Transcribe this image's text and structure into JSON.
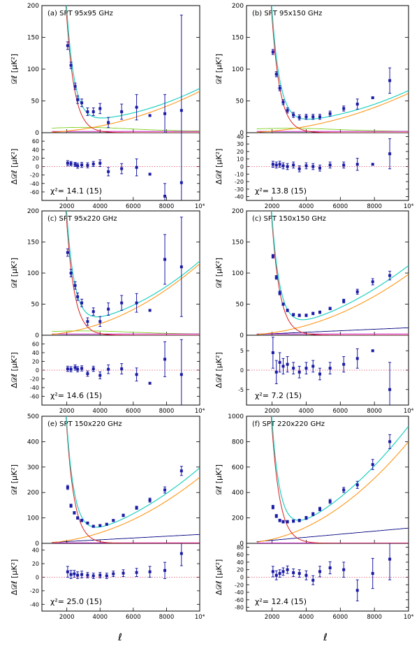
{
  "figure": {
    "x_axis_label": "ℓ",
    "top_ylabel": "𝒟ℓ [μK²]",
    "bottom_ylabel": "Δ𝒟ℓ [μK²]",
    "x_tick_labels": [
      "2000",
      "4000",
      "6000",
      "8000",
      "10⁴"
    ],
    "colors": {
      "data": "#1a1aa6",
      "total_model": "#1fd0c0",
      "cmb": "#d81e1e",
      "poisson": "#ff8c00",
      "cib_clustered": "#7ed321",
      "sz": "#000080",
      "other": "#c000c0",
      "zero_line": "#e0506a"
    }
  },
  "chart_data": [
    {
      "type": "scatter",
      "title": "(a) SPT 95x95 GHz",
      "xlim": [
        500,
        10000
      ],
      "ylim": [
        0,
        200
      ],
      "yticks": [
        0,
        50,
        100,
        150,
        200
      ],
      "resid_ylim": [
        -80,
        80
      ],
      "resid_yticks": [
        -60,
        -40,
        -20,
        0,
        20,
        40,
        60
      ],
      "chi2_label": "χ²= 14.1   (15)",
      "points": [
        {
          "x": 2050,
          "y": 137,
          "e": 6
        },
        {
          "x": 2250,
          "y": 106,
          "e": 5
        },
        {
          "x": 2500,
          "y": 73,
          "e": 5
        },
        {
          "x": 2650,
          "y": 52,
          "e": 6
        },
        {
          "x": 2900,
          "y": 47,
          "e": 6
        },
        {
          "x": 3250,
          "y": 33,
          "e": 6
        },
        {
          "x": 3600,
          "y": 33,
          "e": 6
        },
        {
          "x": 4000,
          "y": 38,
          "e": 8
        },
        {
          "x": 4500,
          "y": 16,
          "e": 8
        },
        {
          "x": 5300,
          "y": 33,
          "e": 12
        },
        {
          "x": 6200,
          "y": 40,
          "e": 20
        },
        {
          "x": 7000,
          "y": 27,
          "e": 0
        },
        {
          "x": 7900,
          "y": 30,
          "e": 30
        },
        {
          "x": 8900,
          "y": 35,
          "e": 150
        }
      ],
      "residuals": [
        {
          "x": 2050,
          "y": 8,
          "e": 6
        },
        {
          "x": 2250,
          "y": 7,
          "e": 5
        },
        {
          "x": 2500,
          "y": 5,
          "e": 5
        },
        {
          "x": 2650,
          "y": 2,
          "e": 6
        },
        {
          "x": 2900,
          "y": 4,
          "e": 6
        },
        {
          "x": 3250,
          "y": 3,
          "e": 6
        },
        {
          "x": 3600,
          "y": 6,
          "e": 6
        },
        {
          "x": 4000,
          "y": 8,
          "e": 8
        },
        {
          "x": 4500,
          "y": -12,
          "e": 10
        },
        {
          "x": 5300,
          "y": -5,
          "e": 12
        },
        {
          "x": 6200,
          "y": -2,
          "e": 20
        },
        {
          "x": 7000,
          "y": -18,
          "e": 0
        },
        {
          "x": 7900,
          "y": -70,
          "e": 30
        },
        {
          "x": 8900,
          "y": -38,
          "e": 150
        }
      ],
      "models": {
        "cmb_scale": 1,
        "poisson_a": 65,
        "cib_amp": 6,
        "sz_amp": 0,
        "other_amp": 2
      }
    },
    {
      "type": "scatter",
      "title": "(b) SPT 95x150 GHz",
      "xlim": [
        500,
        10000
      ],
      "ylim": [
        0,
        200
      ],
      "yticks": [
        0,
        50,
        100,
        150,
        200
      ],
      "resid_ylim": [
        -45,
        45
      ],
      "resid_yticks": [
        -40,
        -30,
        -20,
        -10,
        0,
        10,
        20,
        30,
        40
      ],
      "chi2_label": "χ²= 13.8   (15)",
      "points": [
        {
          "x": 2050,
          "y": 127,
          "e": 4
        },
        {
          "x": 2250,
          "y": 92,
          "e": 4
        },
        {
          "x": 2450,
          "y": 70,
          "e": 4
        },
        {
          "x": 2650,
          "y": 48,
          "e": 4
        },
        {
          "x": 2900,
          "y": 35,
          "e": 4
        },
        {
          "x": 3250,
          "y": 28,
          "e": 4
        },
        {
          "x": 3600,
          "y": 24,
          "e": 4
        },
        {
          "x": 4000,
          "y": 25,
          "e": 4
        },
        {
          "x": 4400,
          "y": 25,
          "e": 4
        },
        {
          "x": 4800,
          "y": 25,
          "e": 4
        },
        {
          "x": 5400,
          "y": 30,
          "e": 4
        },
        {
          "x": 6200,
          "y": 38,
          "e": 4
        },
        {
          "x": 7000,
          "y": 45,
          "e": 8
        },
        {
          "x": 7900,
          "y": 55,
          "e": 0
        },
        {
          "x": 8900,
          "y": 82,
          "e": 20
        }
      ],
      "residuals": [
        {
          "x": 2050,
          "y": 3,
          "e": 4
        },
        {
          "x": 2250,
          "y": 2,
          "e": 4
        },
        {
          "x": 2450,
          "y": 3,
          "e": 4
        },
        {
          "x": 2650,
          "y": 1,
          "e": 4
        },
        {
          "x": 2900,
          "y": 0,
          "e": 4
        },
        {
          "x": 3250,
          "y": 2,
          "e": 4
        },
        {
          "x": 3600,
          "y": -3,
          "e": 4
        },
        {
          "x": 4000,
          "y": 1,
          "e": 4
        },
        {
          "x": 4400,
          "y": 0,
          "e": 4
        },
        {
          "x": 4800,
          "y": -2,
          "e": 4
        },
        {
          "x": 5400,
          "y": 2,
          "e": 4
        },
        {
          "x": 6200,
          "y": 2,
          "e": 4
        },
        {
          "x": 7000,
          "y": 3,
          "e": 8
        },
        {
          "x": 7900,
          "y": 3,
          "e": 0
        },
        {
          "x": 8900,
          "y": 17,
          "e": 20
        }
      ],
      "models": {
        "cmb_scale": 1,
        "poisson_a": 62,
        "cib_amp": 5,
        "sz_amp": 0,
        "other_amp": 2
      }
    },
    {
      "type": "scatter",
      "title": "(c) SPT 95x220 GHz",
      "xlim": [
        500,
        10000
      ],
      "ylim": [
        0,
        200
      ],
      "yticks": [
        0,
        50,
        100,
        150,
        200
      ],
      "resid_ylim": [
        -80,
        80
      ],
      "resid_yticks": [
        -60,
        -40,
        -20,
        0,
        20,
        40,
        60
      ],
      "chi2_label": "χ²= 14.6   (15)",
      "points": [
        {
          "x": 2050,
          "y": 133,
          "e": 6
        },
        {
          "x": 2250,
          "y": 100,
          "e": 6
        },
        {
          "x": 2500,
          "y": 80,
          "e": 6
        },
        {
          "x": 2650,
          "y": 62,
          "e": 6
        },
        {
          "x": 2900,
          "y": 52,
          "e": 6
        },
        {
          "x": 3250,
          "y": 22,
          "e": 6
        },
        {
          "x": 3600,
          "y": 38,
          "e": 6
        },
        {
          "x": 4000,
          "y": 22,
          "e": 8
        },
        {
          "x": 4500,
          "y": 42,
          "e": 10
        },
        {
          "x": 5300,
          "y": 52,
          "e": 12
        },
        {
          "x": 6200,
          "y": 52,
          "e": 15
        },
        {
          "x": 7000,
          "y": 40,
          "e": 0
        },
        {
          "x": 7900,
          "y": 122,
          "e": 40
        },
        {
          "x": 8900,
          "y": 110,
          "e": 80
        }
      ],
      "residuals": [
        {
          "x": 2050,
          "y": 3,
          "e": 6
        },
        {
          "x": 2250,
          "y": 2,
          "e": 6
        },
        {
          "x": 2500,
          "y": 6,
          "e": 6
        },
        {
          "x": 2650,
          "y": 2,
          "e": 6
        },
        {
          "x": 2900,
          "y": 4,
          "e": 6
        },
        {
          "x": 3250,
          "y": -8,
          "e": 6
        },
        {
          "x": 3600,
          "y": 3,
          "e": 6
        },
        {
          "x": 4000,
          "y": -12,
          "e": 8
        },
        {
          "x": 4500,
          "y": 2,
          "e": 10
        },
        {
          "x": 5300,
          "y": 3,
          "e": 12
        },
        {
          "x": 6200,
          "y": -10,
          "e": 15
        },
        {
          "x": 7000,
          "y": -30,
          "e": 0
        },
        {
          "x": 7900,
          "y": 25,
          "e": 40
        },
        {
          "x": 8900,
          "y": -10,
          "e": 80
        }
      ],
      "models": {
        "cmb_scale": 1,
        "poisson_a": 115,
        "cib_amp": 5,
        "sz_amp": 0,
        "other_amp": 2
      }
    },
    {
      "type": "scatter",
      "title": "(c) SPT 150x150 GHz",
      "xlim": [
        500,
        10000
      ],
      "ylim": [
        0,
        200
      ],
      "yticks": [
        0,
        50,
        100,
        150,
        200
      ],
      "resid_ylim": [
        -9,
        9
      ],
      "resid_yticks": [
        -5,
        0,
        5
      ],
      "chi2_label": "χ²= 7.2   (15)",
      "points": [
        {
          "x": 2050,
          "y": 127,
          "e": 3
        },
        {
          "x": 2250,
          "y": 93,
          "e": 3
        },
        {
          "x": 2450,
          "y": 68,
          "e": 3
        },
        {
          "x": 2650,
          "y": 50,
          "e": 2
        },
        {
          "x": 2900,
          "y": 40,
          "e": 2
        },
        {
          "x": 3250,
          "y": 33,
          "e": 2
        },
        {
          "x": 3600,
          "y": 32,
          "e": 2
        },
        {
          "x": 4000,
          "y": 32,
          "e": 2
        },
        {
          "x": 4400,
          "y": 35,
          "e": 2
        },
        {
          "x": 4800,
          "y": 37,
          "e": 2
        },
        {
          "x": 5400,
          "y": 43,
          "e": 2
        },
        {
          "x": 6200,
          "y": 55,
          "e": 3
        },
        {
          "x": 7000,
          "y": 70,
          "e": 4
        },
        {
          "x": 7900,
          "y": 86,
          "e": 5
        },
        {
          "x": 8900,
          "y": 96,
          "e": 7
        }
      ],
      "residuals": [
        {
          "x": 2050,
          "y": 4.5,
          "e": 4
        },
        {
          "x": 2250,
          "y": -0.5,
          "e": 3
        },
        {
          "x": 2450,
          "y": 2,
          "e": 2.5
        },
        {
          "x": 2650,
          "y": 1,
          "e": 2
        },
        {
          "x": 2900,
          "y": 1.5,
          "e": 2
        },
        {
          "x": 3250,
          "y": 0.5,
          "e": 1.5
        },
        {
          "x": 3600,
          "y": -0.5,
          "e": 1.5
        },
        {
          "x": 4000,
          "y": 0.5,
          "e": 1.5
        },
        {
          "x": 4400,
          "y": 1,
          "e": 1.5
        },
        {
          "x": 4800,
          "y": -1,
          "e": 1.5
        },
        {
          "x": 5400,
          "y": 0.5,
          "e": 1.5
        },
        {
          "x": 6200,
          "y": 1.5,
          "e": 2
        },
        {
          "x": 7000,
          "y": 3,
          "e": 2.5
        },
        {
          "x": 7900,
          "y": 5,
          "e": 0
        },
        {
          "x": 8900,
          "y": -5,
          "e": 7
        }
      ],
      "models": {
        "cmb_scale": 1,
        "poisson_a": 98,
        "cib_amp": 0,
        "sz_amp": 12,
        "other_amp": 2
      }
    },
    {
      "type": "scatter",
      "title": "(e) SPT 150x220 GHz",
      "xlim": [
        500,
        10000
      ],
      "ylim": [
        0,
        500
      ],
      "yticks": [
        0,
        100,
        200,
        300,
        400,
        500
      ],
      "resid_ylim": [
        -50,
        50
      ],
      "resid_yticks": [
        -40,
        -20,
        0,
        20,
        40
      ],
      "chi2_label": "χ²= 25.0   (15)",
      "points": [
        {
          "x": 2050,
          "y": 220,
          "e": 8
        },
        {
          "x": 2250,
          "y": 148,
          "e": 6
        },
        {
          "x": 2450,
          "y": 120,
          "e": 5
        },
        {
          "x": 2650,
          "y": 100,
          "e": 5
        },
        {
          "x": 2900,
          "y": 90,
          "e": 5
        },
        {
          "x": 3250,
          "y": 80,
          "e": 4
        },
        {
          "x": 3600,
          "y": 67,
          "e": 4
        },
        {
          "x": 4000,
          "y": 70,
          "e": 4
        },
        {
          "x": 4400,
          "y": 75,
          "e": 4
        },
        {
          "x": 4800,
          "y": 90,
          "e": 4
        },
        {
          "x": 5400,
          "y": 110,
          "e": 5
        },
        {
          "x": 6200,
          "y": 140,
          "e": 6
        },
        {
          "x": 7000,
          "y": 170,
          "e": 8
        },
        {
          "x": 7900,
          "y": 210,
          "e": 12
        },
        {
          "x": 8900,
          "y": 285,
          "e": 18
        }
      ],
      "residuals": [
        {
          "x": 2050,
          "y": 8,
          "e": 8
        },
        {
          "x": 2250,
          "y": 4,
          "e": 6
        },
        {
          "x": 2450,
          "y": 5,
          "e": 5
        },
        {
          "x": 2650,
          "y": 3,
          "e": 5
        },
        {
          "x": 2900,
          "y": 4,
          "e": 5
        },
        {
          "x": 3250,
          "y": 3,
          "e": 4
        },
        {
          "x": 3600,
          "y": 2,
          "e": 4
        },
        {
          "x": 4000,
          "y": 3,
          "e": 4
        },
        {
          "x": 4400,
          "y": 2,
          "e": 4
        },
        {
          "x": 4800,
          "y": 5,
          "e": 4
        },
        {
          "x": 5400,
          "y": 6,
          "e": 5
        },
        {
          "x": 6200,
          "y": 7,
          "e": 6
        },
        {
          "x": 7000,
          "y": 8,
          "e": 8
        },
        {
          "x": 7900,
          "y": 10,
          "e": 12
        },
        {
          "x": 8900,
          "y": 35,
          "e": 18
        }
      ],
      "models": {
        "cmb_scale": 1,
        "poisson_a": 260,
        "cib_amp": 0,
        "sz_amp": 35,
        "other_amp": 2
      }
    },
    {
      "type": "scatter",
      "title": "(f) SPT 220x220 GHz",
      "xlim": [
        500,
        10000
      ],
      "ylim": [
        0,
        1000
      ],
      "yticks": [
        0,
        200,
        400,
        600,
        800,
        1000
      ],
      "resid_ylim": [
        -90,
        90
      ],
      "resid_yticks": [
        -80,
        -60,
        -40,
        -20,
        0,
        20,
        40,
        60,
        80
      ],
      "chi2_label": "χ²= 12.4   (15)",
      "points": [
        {
          "x": 2050,
          "y": 285,
          "e": 14
        },
        {
          "x": 2250,
          "y": 215,
          "e": 12
        },
        {
          "x": 2450,
          "y": 180,
          "e": 10
        },
        {
          "x": 2650,
          "y": 170,
          "e": 10
        },
        {
          "x": 2900,
          "y": 170,
          "e": 10
        },
        {
          "x": 3250,
          "y": 175,
          "e": 10
        },
        {
          "x": 3600,
          "y": 180,
          "e": 10
        },
        {
          "x": 4000,
          "y": 200,
          "e": 12
        },
        {
          "x": 4400,
          "y": 230,
          "e": 12
        },
        {
          "x": 4800,
          "y": 270,
          "e": 14
        },
        {
          "x": 5400,
          "y": 330,
          "e": 16
        },
        {
          "x": 6200,
          "y": 420,
          "e": 20
        },
        {
          "x": 7000,
          "y": 460,
          "e": 28
        },
        {
          "x": 7900,
          "y": 620,
          "e": 40
        },
        {
          "x": 8900,
          "y": 800,
          "e": 55
        }
      ],
      "residuals": [
        {
          "x": 2050,
          "y": 15,
          "e": 14
        },
        {
          "x": 2250,
          "y": 5,
          "e": 12
        },
        {
          "x": 2450,
          "y": 10,
          "e": 10
        },
        {
          "x": 2650,
          "y": 15,
          "e": 10
        },
        {
          "x": 2900,
          "y": 20,
          "e": 10
        },
        {
          "x": 3250,
          "y": 12,
          "e": 10
        },
        {
          "x": 3600,
          "y": 10,
          "e": 10
        },
        {
          "x": 4000,
          "y": 5,
          "e": 12
        },
        {
          "x": 4400,
          "y": -8,
          "e": 12
        },
        {
          "x": 4800,
          "y": 15,
          "e": 14
        },
        {
          "x": 5400,
          "y": 25,
          "e": 16
        },
        {
          "x": 6200,
          "y": 20,
          "e": 20
        },
        {
          "x": 7000,
          "y": -35,
          "e": 28
        },
        {
          "x": 7900,
          "y": 10,
          "e": 40
        },
        {
          "x": 8900,
          "y": 48,
          "e": 55
        }
      ],
      "models": {
        "cmb_scale": 1,
        "poisson_a": 800,
        "cib_amp": 0,
        "sz_amp": 120,
        "other_amp": 2
      }
    }
  ]
}
